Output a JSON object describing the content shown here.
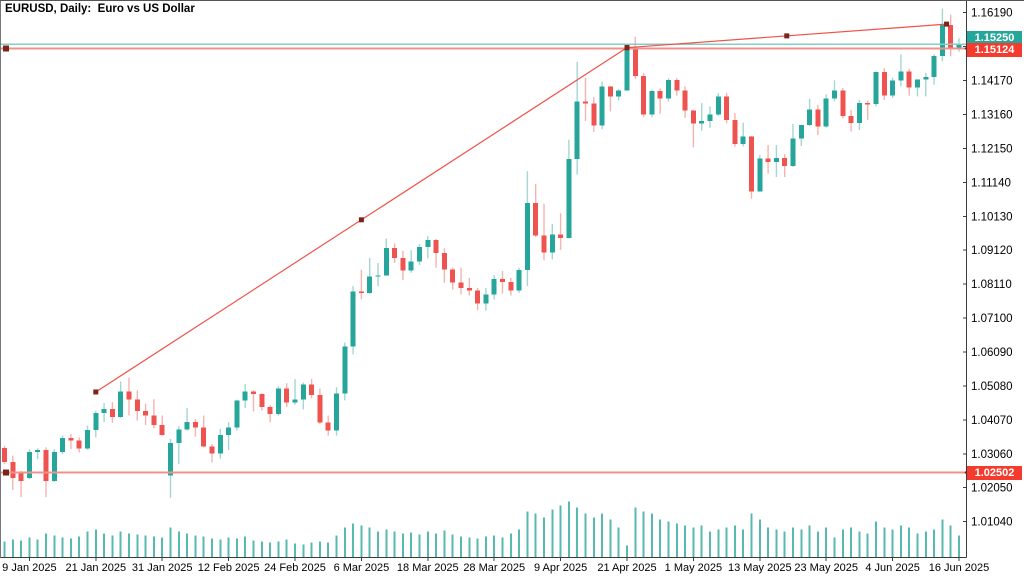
{
  "window": {
    "title": "EURUSD, Daily:  Euro vs US Dollar"
  },
  "badges": {
    "bid": "1.15250",
    "level_upper": "1.15124",
    "level_lower": "1.02502"
  },
  "y_axis": {
    "ticks": [
      "1.16190",
      "1.15180",
      "1.14170",
      "1.13160",
      "1.12150",
      "1.11140",
      "1.10130",
      "1.09120",
      "1.08110",
      "1.07100",
      "1.06090",
      "1.05080",
      "1.04070",
      "1.03060",
      "1.02050",
      "1.01040"
    ]
  },
  "x_axis": {
    "labels": [
      {
        "text": "9 Jan 2025",
        "bar": 3
      },
      {
        "text": "21 Jan 2025",
        "bar": 11
      },
      {
        "text": "31 Jan 2025",
        "bar": 19
      },
      {
        "text": "12 Feb 2025",
        "bar": 27
      },
      {
        "text": "24 Feb 2025",
        "bar": 35
      },
      {
        "text": "6 Mar 2025",
        "bar": 43
      },
      {
        "text": "18 Mar 2025",
        "bar": 51
      },
      {
        "text": "28 Mar 2025",
        "bar": 59
      },
      {
        "text": "9 Apr 2025",
        "bar": 67
      },
      {
        "text": "21 Apr 2025",
        "bar": 75
      },
      {
        "text": "1 May 2025",
        "bar": 83
      },
      {
        "text": "13 May 2025",
        "bar": 91
      },
      {
        "text": "23 May 2025",
        "bar": 99
      },
      {
        "text": "4 Jun 2025",
        "bar": 107
      },
      {
        "text": "16 Jun 2025",
        "bar": 115
      }
    ]
  },
  "colors": {
    "bull": "#26a69a",
    "bull_wick": "#a3d7d1",
    "bear": "#ef5350",
    "bear_wick": "#f5b3b0",
    "volume": "#57b9af",
    "axis": "#3c3c3c",
    "text": "#000000",
    "trend_line": "#f0524a",
    "hline": "#f0928c",
    "bid_line": "#82cfc8",
    "handle": "#7c241c",
    "badge_teal_bg": "#26a69a",
    "badge_red_bg": "#f43b2e",
    "badge_text": "#ffffff"
  },
  "chart_data": {
    "type": "candlestick",
    "symbol": "EURUSD",
    "timeframe": "Daily",
    "description": "Euro vs US Dollar",
    "price_range_visible": [
      1.01,
      1.1657
    ],
    "grid": false,
    "dates": [
      "2025-01-06",
      "2025-01-07",
      "2025-01-08",
      "2025-01-09",
      "2025-01-10",
      "2025-01-13",
      "2025-01-14",
      "2025-01-15",
      "2025-01-16",
      "2025-01-17",
      "2025-01-20",
      "2025-01-21",
      "2025-01-22",
      "2025-01-23",
      "2025-01-24",
      "2025-01-27",
      "2025-01-28",
      "2025-01-29",
      "2025-01-30",
      "2025-01-31",
      "2025-02-03",
      "2025-02-04",
      "2025-02-05",
      "2025-02-06",
      "2025-02-07",
      "2025-02-10",
      "2025-02-11",
      "2025-02-12",
      "2025-02-13",
      "2025-02-14",
      "2025-02-17",
      "2025-02-18",
      "2025-02-19",
      "2025-02-20",
      "2025-02-21",
      "2025-02-24",
      "2025-02-25",
      "2025-02-26",
      "2025-02-27",
      "2025-02-28",
      "2025-03-03",
      "2025-03-04",
      "2025-03-05",
      "2025-03-06",
      "2025-03-07",
      "2025-03-10",
      "2025-03-11",
      "2025-03-12",
      "2025-03-13",
      "2025-03-14",
      "2025-03-17",
      "2025-03-18",
      "2025-03-19",
      "2025-03-20",
      "2025-03-21",
      "2025-03-24",
      "2025-03-25",
      "2025-03-26",
      "2025-03-27",
      "2025-03-28",
      "2025-03-31",
      "2025-04-01",
      "2025-04-02",
      "2025-04-03",
      "2025-04-04",
      "2025-04-07",
      "2025-04-08",
      "2025-04-09",
      "2025-04-10",
      "2025-04-11",
      "2025-04-14",
      "2025-04-15",
      "2025-04-16",
      "2025-04-17",
      "2025-04-18",
      "2025-04-21",
      "2025-04-22",
      "2025-04-23",
      "2025-04-24",
      "2025-04-25",
      "2025-04-28",
      "2025-04-29",
      "2025-04-30",
      "2025-05-01",
      "2025-05-02",
      "2025-05-05",
      "2025-05-06",
      "2025-05-07",
      "2025-05-08",
      "2025-05-09",
      "2025-05-12",
      "2025-05-13",
      "2025-05-14",
      "2025-05-15",
      "2025-05-16",
      "2025-05-19",
      "2025-05-20",
      "2025-05-21",
      "2025-05-22",
      "2025-05-23",
      "2025-05-26",
      "2025-05-27",
      "2025-05-28",
      "2025-05-29",
      "2025-05-30",
      "2025-06-02",
      "2025-06-03",
      "2025-06-04",
      "2025-06-05",
      "2025-06-06",
      "2025-06-09",
      "2025-06-10",
      "2025-06-11",
      "2025-06-12",
      "2025-06-13",
      "2025-06-16"
    ],
    "ohlc": [
      [
        1.0323,
        1.033,
        1.0275,
        1.0281
      ],
      [
        1.0281,
        1.0301,
        1.0198,
        1.0234
      ],
      [
        1.0249,
        1.0255,
        1.0177,
        1.0225
      ],
      [
        1.0234,
        1.032,
        1.023,
        1.0311
      ],
      [
        1.0311,
        1.0322,
        1.029,
        1.0317
      ],
      [
        1.0317,
        1.0325,
        1.0177,
        1.0225
      ],
      [
        1.0225,
        1.032,
        1.0222,
        1.0311
      ],
      [
        1.0311,
        1.036,
        1.0305,
        1.0353
      ],
      [
        1.0353,
        1.0365,
        1.032,
        1.0345
      ],
      [
        1.0345,
        1.0355,
        1.031,
        1.0322
      ],
      [
        1.0322,
        1.039,
        1.0318,
        1.0377
      ],
      [
        1.0377,
        1.0435,
        1.0355,
        1.0428
      ],
      [
        1.0428,
        1.0457,
        1.04,
        1.044
      ],
      [
        1.044,
        1.046,
        1.0398,
        1.0416
      ],
      [
        1.0416,
        1.0521,
        1.0413,
        1.0492
      ],
      [
        1.0492,
        1.0533,
        1.042,
        1.0467
      ],
      [
        1.0467,
        1.0495,
        1.0405,
        1.0433
      ],
      [
        1.0433,
        1.0455,
        1.0392,
        1.042
      ],
      [
        1.042,
        1.0468,
        1.0382,
        1.0392
      ],
      [
        1.0392,
        1.042,
        1.036,
        1.0362
      ],
      [
        1.0241,
        1.035,
        1.0175,
        1.0338
      ],
      [
        1.0338,
        1.0388,
        1.0275,
        1.0378
      ],
      [
        1.0378,
        1.0442,
        1.0375,
        1.04
      ],
      [
        1.04,
        1.041,
        1.0357,
        1.0384
      ],
      [
        1.0384,
        1.042,
        1.0325,
        1.0328
      ],
      [
        1.0328,
        1.0335,
        1.028,
        1.0307
      ],
      [
        1.0307,
        1.038,
        1.0292,
        1.0362
      ],
      [
        1.0362,
        1.04,
        1.0317,
        1.0384
      ],
      [
        1.0384,
        1.0467,
        1.0375,
        1.0465
      ],
      [
        1.0465,
        1.0514,
        1.0442,
        1.0492
      ],
      [
        1.0492,
        1.0495,
        1.0432,
        1.0484
      ],
      [
        1.0484,
        1.0486,
        1.0435,
        1.0445
      ],
      [
        1.0445,
        1.045,
        1.04,
        1.0425
      ],
      [
        1.0425,
        1.0507,
        1.042,
        1.05
      ],
      [
        1.05,
        1.0516,
        1.0445,
        1.0458
      ],
      [
        1.0458,
        1.0528,
        1.0452,
        1.0467
      ],
      [
        1.0467,
        1.0518,
        1.0438,
        1.0513
      ],
      [
        1.0513,
        1.0529,
        1.0471,
        1.0481
      ],
      [
        1.0481,
        1.05,
        1.0394,
        1.0399
      ],
      [
        1.0399,
        1.042,
        1.036,
        1.0375
      ],
      [
        1.0375,
        1.0504,
        1.036,
        1.0486
      ],
      [
        1.0486,
        1.0637,
        1.0465,
        1.0625
      ],
      [
        1.0625,
        1.0805,
        1.0602,
        1.0789
      ],
      [
        1.0789,
        1.0854,
        1.0766,
        1.0785
      ],
      [
        1.0785,
        1.0889,
        1.0782,
        1.0834
      ],
      [
        1.0834,
        1.0874,
        1.0805,
        1.0837
      ],
      [
        1.0837,
        1.0947,
        1.0836,
        1.0919
      ],
      [
        1.0919,
        1.0932,
        1.0874,
        1.0889
      ],
      [
        1.0889,
        1.091,
        1.0823,
        1.0852
      ],
      [
        1.0852,
        1.0912,
        1.0845,
        1.0879
      ],
      [
        1.0879,
        1.093,
        1.0868,
        1.0922
      ],
      [
        1.0922,
        1.0954,
        1.0888,
        1.0943
      ],
      [
        1.0943,
        1.0946,
        1.086,
        1.0903
      ],
      [
        1.0903,
        1.0918,
        1.0815,
        1.0855
      ],
      [
        1.0855,
        1.086,
        1.0795,
        1.0816
      ],
      [
        1.0816,
        1.086,
        1.078,
        1.08
      ],
      [
        1.08,
        1.0829,
        1.0777,
        1.0792
      ],
      [
        1.0792,
        1.08,
        1.0733,
        1.0754
      ],
      [
        1.0754,
        1.08,
        1.0732,
        1.078
      ],
      [
        1.078,
        1.0838,
        1.0765,
        1.0827
      ],
      [
        1.0827,
        1.085,
        1.0783,
        1.0817
      ],
      [
        1.0817,
        1.083,
        1.0777,
        1.0792
      ],
      [
        1.0792,
        1.086,
        1.0785,
        1.0853
      ],
      [
        1.0853,
        1.1147,
        1.0805,
        1.1052
      ],
      [
        1.1052,
        1.1109,
        1.0951,
        1.0956
      ],
      [
        1.0956,
        1.105,
        1.0882,
        1.0905
      ],
      [
        1.0905,
        1.099,
        1.0885,
        1.0959
      ],
      [
        1.0959,
        1.1022,
        1.0913,
        1.0948
      ],
      [
        1.0948,
        1.1241,
        1.0947,
        1.1183
      ],
      [
        1.1183,
        1.1473,
        1.1137,
        1.1355
      ],
      [
        1.1355,
        1.1425,
        1.1297,
        1.1348
      ],
      [
        1.1348,
        1.1368,
        1.1264,
        1.1283
      ],
      [
        1.1283,
        1.1414,
        1.1272,
        1.1399
      ],
      [
        1.1399,
        1.1401,
        1.1325,
        1.1369
      ],
      [
        1.1369,
        1.1392,
        1.1358,
        1.1388
      ],
      [
        1.1388,
        1.152,
        1.1388,
        1.1513
      ],
      [
        1.1513,
        1.1547,
        1.1422,
        1.143
      ],
      [
        1.143,
        1.144,
        1.1308,
        1.1316
      ],
      [
        1.1316,
        1.139,
        1.1308,
        1.1386
      ],
      [
        1.1386,
        1.1394,
        1.1318,
        1.1363
      ],
      [
        1.1363,
        1.1424,
        1.1355,
        1.1418
      ],
      [
        1.1418,
        1.1425,
        1.1372,
        1.1388
      ],
      [
        1.1388,
        1.14,
        1.1306,
        1.1328
      ],
      [
        1.1328,
        1.133,
        1.1218,
        1.1289
      ],
      [
        1.1289,
        1.135,
        1.1268,
        1.1297
      ],
      [
        1.1297,
        1.134,
        1.1276,
        1.1316
      ],
      [
        1.1316,
        1.138,
        1.1311,
        1.1369
      ],
      [
        1.1369,
        1.138,
        1.129,
        1.13
      ],
      [
        1.13,
        1.132,
        1.122,
        1.1228
      ],
      [
        1.1228,
        1.1292,
        1.1221,
        1.125
      ],
      [
        1.125,
        1.1252,
        1.1065,
        1.1087
      ],
      [
        1.1087,
        1.1195,
        1.1086,
        1.1185
      ],
      [
        1.1185,
        1.1225,
        1.114,
        1.1175
      ],
      [
        1.1175,
        1.1225,
        1.113,
        1.1187
      ],
      [
        1.1187,
        1.1198,
        1.113,
        1.1162
      ],
      [
        1.1162,
        1.1288,
        1.116,
        1.1244
      ],
      [
        1.1244,
        1.1285,
        1.1222,
        1.1284
      ],
      [
        1.1284,
        1.1363,
        1.1282,
        1.1331
      ],
      [
        1.1331,
        1.1345,
        1.1255,
        1.128
      ],
      [
        1.128,
        1.1376,
        1.1277,
        1.1364
      ],
      [
        1.1364,
        1.1418,
        1.1355,
        1.1388
      ],
      [
        1.1388,
        1.1395,
        1.1305,
        1.1312
      ],
      [
        1.1312,
        1.133,
        1.1265,
        1.129
      ],
      [
        1.129,
        1.136,
        1.127,
        1.135
      ],
      [
        1.135,
        1.1358,
        1.13,
        1.1347
      ],
      [
        1.1347,
        1.1444,
        1.134,
        1.1442
      ],
      [
        1.1442,
        1.1454,
        1.1359,
        1.1372
      ],
      [
        1.1372,
        1.1426,
        1.1365,
        1.1417
      ],
      [
        1.1417,
        1.1495,
        1.14,
        1.1444
      ],
      [
        1.1444,
        1.1452,
        1.1372,
        1.1397
      ],
      [
        1.1397,
        1.1421,
        1.137,
        1.142
      ],
      [
        1.142,
        1.144,
        1.137,
        1.1427
      ],
      [
        1.1427,
        1.1495,
        1.1405,
        1.149
      ],
      [
        1.149,
        1.1631,
        1.1474,
        1.1583
      ],
      [
        1.1583,
        1.1613,
        1.1489,
        1.1513
      ],
      [
        1.1513,
        1.1543,
        1.1503,
        1.1525
      ]
    ],
    "volume_rel": [
      16,
      18,
      17,
      20,
      18,
      24,
      22,
      20,
      19,
      21,
      26,
      28,
      24,
      22,
      26,
      24,
      23,
      22,
      21,
      20,
      30,
      26,
      24,
      22,
      21,
      19,
      18,
      20,
      19,
      21,
      17,
      16,
      15,
      16,
      18,
      14,
      13,
      15,
      16,
      15,
      22,
      30,
      34,
      32,
      30,
      26,
      28,
      26,
      24,
      25,
      23,
      26,
      24,
      27,
      23,
      21,
      20,
      19,
      21,
      22,
      20,
      24,
      28,
      46,
      44,
      40,
      48,
      52,
      56,
      50,
      44,
      40,
      44,
      38,
      30,
      12,
      50,
      46,
      44,
      38,
      36,
      34,
      32,
      30,
      32,
      26,
      28,
      30,
      32,
      28,
      44,
      38,
      30,
      28,
      26,
      30,
      28,
      32,
      26,
      30,
      20,
      28,
      30,
      26,
      24,
      36,
      30,
      28,
      32,
      30,
      24,
      26,
      28,
      38,
      32,
      22
    ],
    "objects": {
      "trendlines": [
        {
          "from_bar": 11,
          "from_price": 1.049,
          "to_bar": 75,
          "to_price": 1.1515
        },
        {
          "from_bar": 75,
          "from_price": 1.1515,
          "to_bar": 113.5,
          "to_price": 1.1585
        }
      ],
      "hlines": [
        {
          "price": 1.15124,
          "label": "1.15124"
        },
        {
          "price": 1.02502,
          "label": "1.02502"
        }
      ],
      "bid_line": {
        "price": 1.1525,
        "label": "1.15250"
      }
    }
  }
}
